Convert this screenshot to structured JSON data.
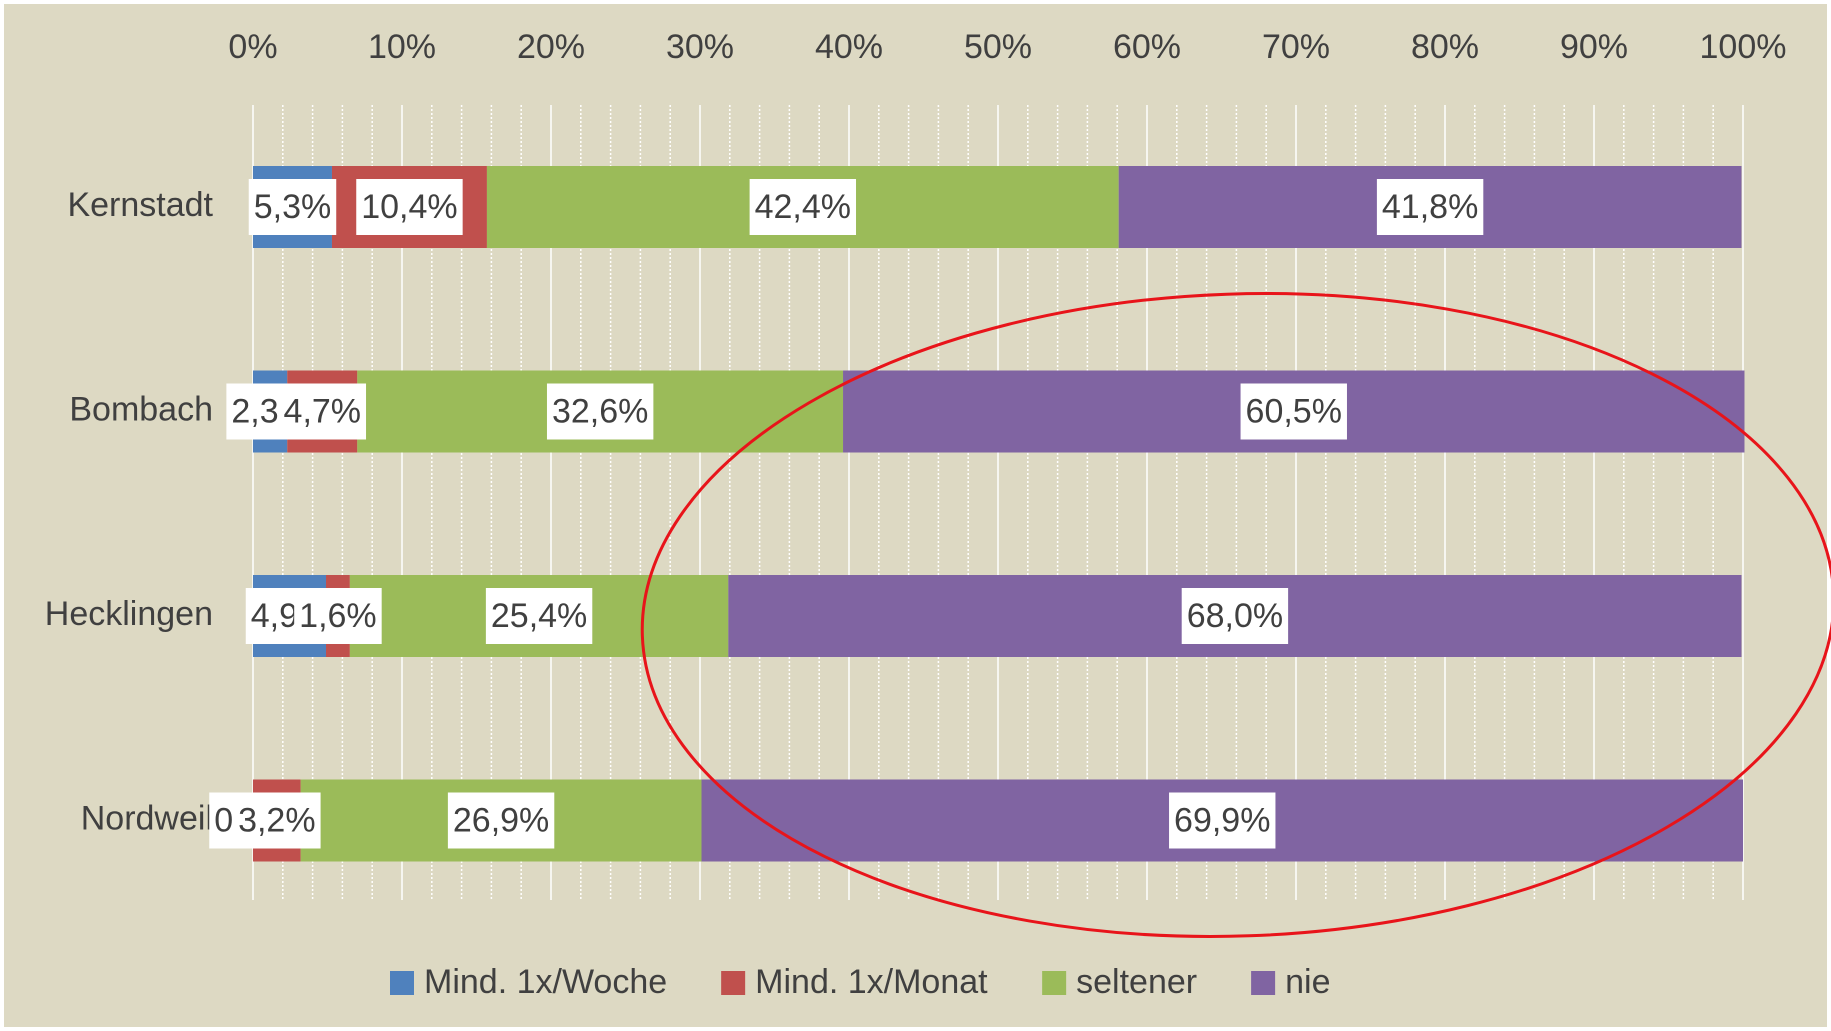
{
  "chart_data": {
    "type": "stacked_bar_horizontal",
    "categories": [
      "Kernstadt",
      "Bombach",
      "Hecklingen",
      "Nordweil"
    ],
    "series": [
      {
        "name": "Mind. 1x/Woche",
        "color": "#4f81bd",
        "values": [
          5.3,
          2.3,
          4.9,
          0
        ],
        "value_labels": [
          "5,3%",
          "2,3%",
          "4,9%",
          "0,0%"
        ]
      },
      {
        "name": "Mind. 1x/Monat",
        "color": "#c0504d",
        "values": [
          10.4,
          4.7,
          1.6,
          3.2
        ],
        "value_labels": [
          "10,4%",
          "4,7%",
          "1,6%",
          "3,2%"
        ]
      },
      {
        "name": "seltener",
        "color": "#9bbb59",
        "values": [
          42.4,
          32.6,
          25.4,
          26.9
        ],
        "value_labels": [
          "42,4%",
          "32,6%",
          "25,4%",
          "26,9%"
        ]
      },
      {
        "name": "nie",
        "color": "#8064a2",
        "values": [
          41.8,
          60.5,
          68.0,
          69.9
        ],
        "value_labels": [
          "41,8%",
          "60,5%",
          "68,0%",
          "69,9%"
        ]
      }
    ],
    "xlim": [
      0,
      100
    ],
    "xticks": [
      {
        "value": 0,
        "label": "0%"
      },
      {
        "value": 10,
        "label": "10%"
      },
      {
        "value": 20,
        "label": "20%"
      },
      {
        "value": 30,
        "label": "30%"
      },
      {
        "value": 40,
        "label": "40%"
      },
      {
        "value": 50,
        "label": "50%"
      },
      {
        "value": 60,
        "label": "60%"
      },
      {
        "value": 70,
        "label": "70%"
      },
      {
        "value": 80,
        "label": "80%"
      },
      {
        "value": 90,
        "label": "90%"
      },
      {
        "value": 100,
        "label": "100%"
      }
    ],
    "grid": true,
    "legend": "bottom"
  }
}
